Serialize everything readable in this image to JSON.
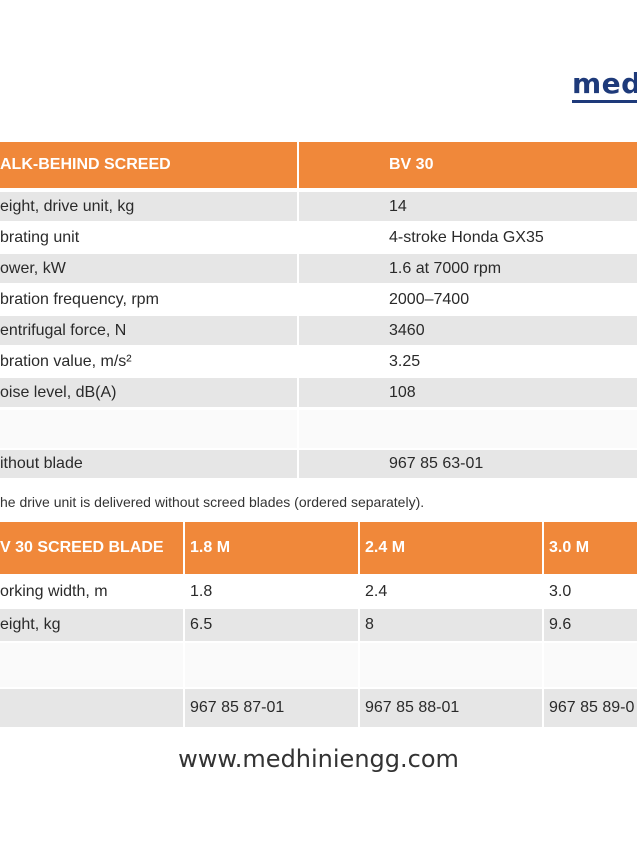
{
  "brand": {
    "logo_text": "med"
  },
  "table1": {
    "header": [
      "ALK-BEHIND SCREED",
      "BV 30"
    ],
    "rows": [
      [
        "eight, drive unit, kg",
        "14"
      ],
      [
        "brating unit",
        "4-stroke Honda GX35"
      ],
      [
        "ower, kW",
        "1.6 at 7000 rpm"
      ],
      [
        "bration frequency, rpm",
        "2000–7400"
      ],
      [
        "entrifugal force, N",
        "3460"
      ],
      [
        "bration value, m/s²",
        "3.25"
      ],
      [
        "oise level, dB(A)",
        "108"
      ],
      [
        "",
        ""
      ],
      [
        "ithout blade",
        "967 85 63-01"
      ]
    ]
  },
  "note": "he drive unit is delivered without screed blades (ordered separately).",
  "table2": {
    "header": [
      "V 30 SCREED BLADE",
      "1.8 M",
      "2.4 M",
      "3.0 M"
    ],
    "rows": [
      [
        "orking width, m",
        "1.8",
        "2.4",
        "3.0"
      ],
      [
        "eight, kg",
        "6.5",
        "8",
        "9.6"
      ],
      [
        "",
        "",
        "",
        ""
      ],
      [
        "",
        "967 85 87-01",
        "967 85 88-01",
        "967 85 89-0"
      ]
    ]
  },
  "footer": {
    "website": "www.medhiniengg.com"
  }
}
